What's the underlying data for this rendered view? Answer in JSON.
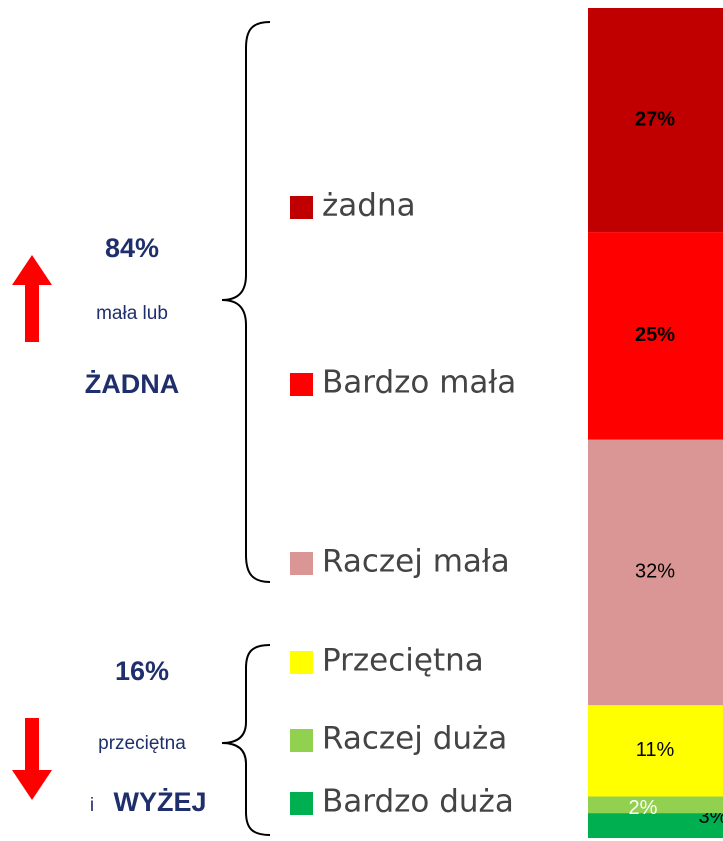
{
  "chart_data": {
    "type": "bar",
    "stacked": true,
    "ylim": [
      0,
      100
    ],
    "series": [
      {
        "name": "żadna",
        "color": "#c00000",
        "values": [
          27
        ],
        "value_labels": [
          "27%"
        ],
        "label_color": "#000000",
        "label_bold": true
      },
      {
        "name": "Bardzo mała",
        "color": "#ff0000",
        "values": [
          25
        ],
        "value_labels": [
          "25%"
        ],
        "label_color": "#000000",
        "label_bold": true
      },
      {
        "name": "Raczej mała",
        "color": "#d99694",
        "values": [
          32
        ],
        "value_labels": [
          "32%"
        ],
        "label_color": "#000000",
        "label_bold": false
      },
      {
        "name": "Przeciętna",
        "color": "#ffff00",
        "values": [
          11
        ],
        "value_labels": [
          "11%"
        ],
        "label_color": "#000000",
        "label_bold": false
      },
      {
        "name": "Raczej duża",
        "color": "#92d050",
        "values": [
          2
        ],
        "value_labels": [
          "2%"
        ],
        "label_color": "#ffffff",
        "label_bold": false
      },
      {
        "name": "Bardzo duża",
        "color": "#00b050",
        "values": [
          3
        ],
        "value_labels": [
          "3%"
        ],
        "label_color": "#000000",
        "label_bold": false
      }
    ],
    "annotations": {
      "top_pct": "84%",
      "top_text": "mała lub",
      "top_word": "ŻADNA",
      "bottom_pct": "16%",
      "bottom_text": "przeciętna",
      "bottom_i": "i",
      "bottom_word": "WYŻEJ"
    }
  }
}
